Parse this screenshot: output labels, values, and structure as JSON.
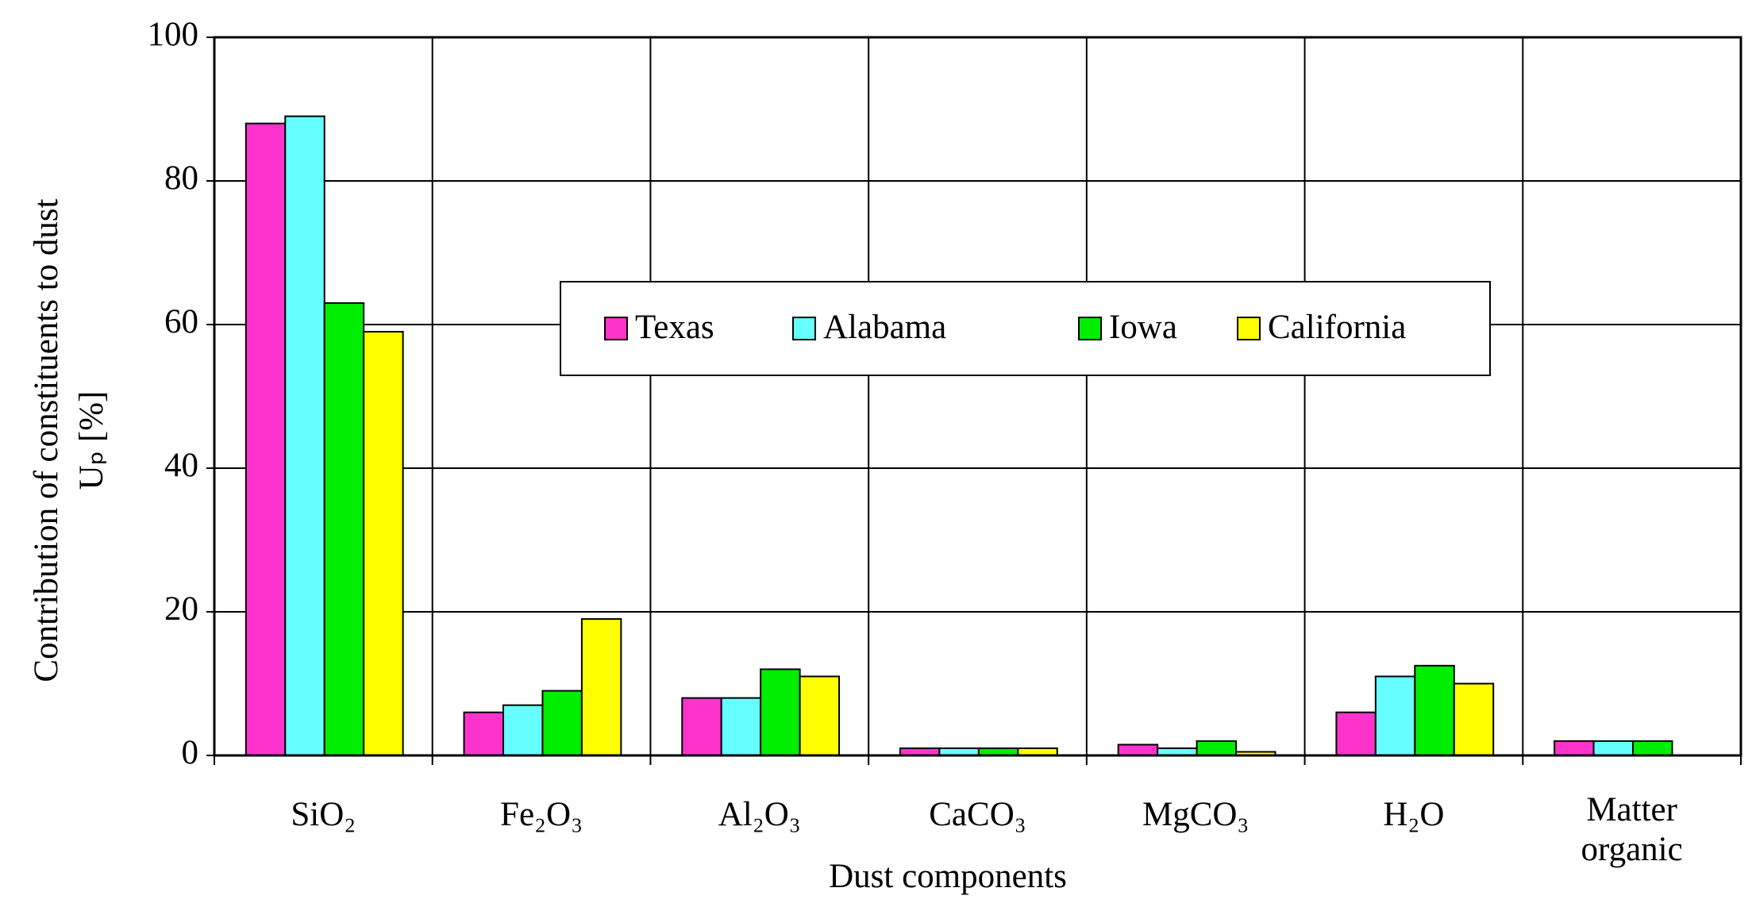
{
  "chart_data": {
    "type": "bar",
    "x_label": "Dust components",
    "y_label": [
      "Contribution of constituents to dust",
      "Uₚ [%]"
    ],
    "categories": [
      "SiO₂",
      "Fe₂O₃",
      "Al₂O₃",
      "CaCO₃",
      "MgCO₃",
      "H₂O",
      "Matter organic"
    ],
    "series": [
      {
        "name": "Texas",
        "color": "#ff33cc",
        "values": [
          88,
          6,
          8,
          1,
          1.5,
          6,
          2
        ]
      },
      {
        "name": "Alabama",
        "color": "#66ffff",
        "values": [
          89,
          7,
          8,
          1,
          1,
          11,
          2
        ]
      },
      {
        "name": "Iowa",
        "color": "#00ee00",
        "values": [
          63,
          9,
          12,
          1,
          2,
          12.5,
          2
        ]
      },
      {
        "name": "California",
        "color": "#ffff00",
        "values": [
          59,
          19,
          11,
          1,
          0.5,
          10,
          null
        ]
      }
    ],
    "ylim": [
      0,
      100
    ],
    "yticks": [
      0,
      20,
      40,
      60,
      80,
      100
    ],
    "grid": true,
    "legend": "center"
  }
}
